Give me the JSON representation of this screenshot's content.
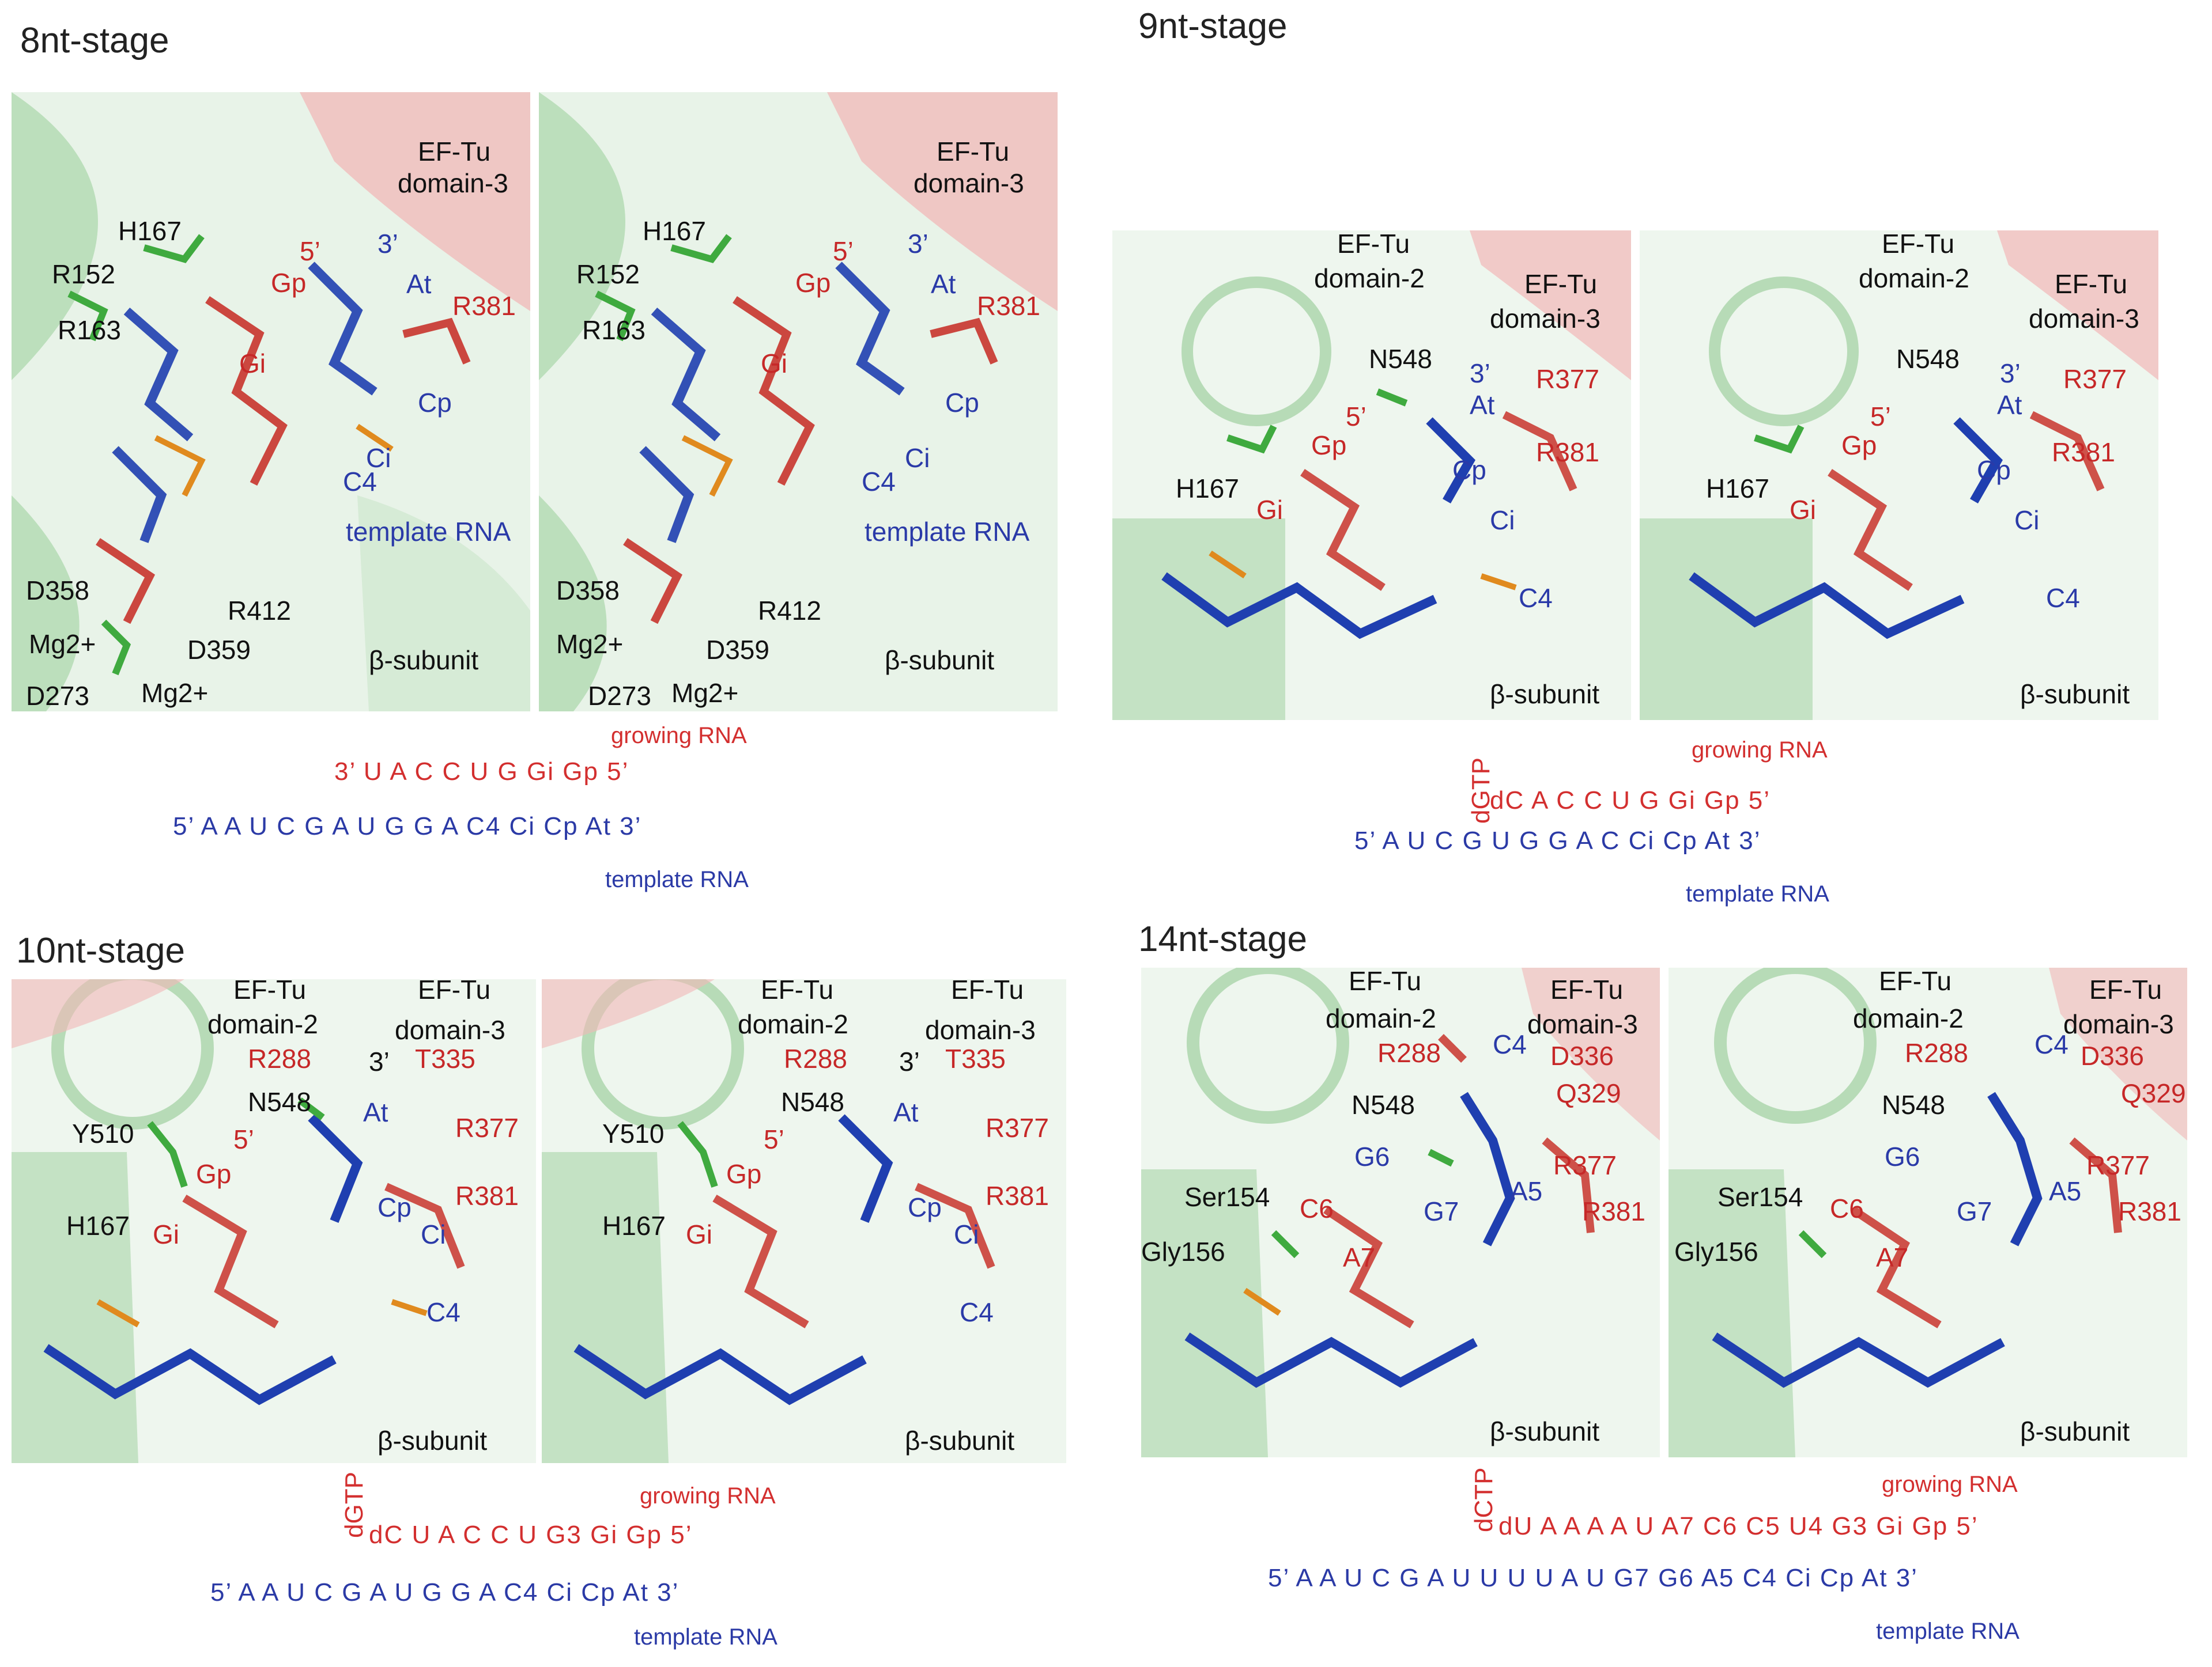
{
  "stages": {
    "s8": {
      "title": "8nt-stage",
      "labels": {
        "ef_tu": "EF-Tu",
        "domain3": "domain-3",
        "h167": "H167",
        "r152": "R152",
        "r163": "R163",
        "gp": "Gp",
        "five_prime": "5’",
        "three_prime": "3’",
        "at": "At",
        "r381": "R381",
        "gi": "Gi",
        "cp": "Cp",
        "ci": "Ci",
        "c4": "C4",
        "template_rna": "template RNA",
        "d358": "D358",
        "r412": "R412",
        "mg": "Mg2+",
        "d359": "D359",
        "d273": "D273",
        "beta": "β-subunit"
      },
      "growing_caption": "growing RNA",
      "growing_seq": "3’  U A C C U G  Gi  Gp  5’",
      "template_seq": "5’  A A U C G A U G G A C4  Ci Cp At  3’",
      "template_caption": "template RNA"
    },
    "s9": {
      "title": "9nt-stage",
      "labels": {
        "ef_tu": "EF-Tu",
        "domain2": "domain-2",
        "domain3": "domain-3",
        "n548": "N548",
        "three_prime": "3’",
        "at": "At",
        "r377": "R377",
        "five_prime": "5’",
        "gp": "Gp",
        "h167": "H167",
        "cp": "Cp",
        "r381": "R381",
        "gi": "Gi",
        "ci": "Ci",
        "c4": "C4",
        "beta": "β-subunit"
      },
      "vertical_label": "dGTP",
      "growing_caption": "growing RNA",
      "growing_seq": "dC A C C U G Gi Gp  5’",
      "template_seq": "5’  A U C   G U G G A C Ci Cp At  3’",
      "template_caption": "template RNA"
    },
    "s10": {
      "title": "10nt-stage",
      "labels": {
        "ef_tu": "EF-Tu",
        "domain2": "domain-2",
        "domain3": "domain-3",
        "r288": "R288",
        "three_prime": "3’",
        "t335": "T335",
        "n548": "N548",
        "y510": "Y510",
        "five_prime": "5’",
        "at": "At",
        "r377": "R377",
        "gp": "Gp",
        "cp": "Cp",
        "r381": "R381",
        "h167": "H167",
        "gi": "Gi",
        "ci": "Ci",
        "c4": "C4",
        "beta": "β-subunit"
      },
      "vertical_label": "dGTP",
      "growing_caption": "growing RNA",
      "growing_seq": "dC  U A C C U G3  Gi Gp  5’",
      "template_seq": "5’  A A U C   G A U G G A C4  Ci Cp At  3’",
      "template_caption": "template RNA"
    },
    "s14": {
      "title": "14nt-stage",
      "labels": {
        "ef_tu": "EF-Tu",
        "domain2": "domain-2",
        "domain3": "domain-3",
        "r288": "R288",
        "c4": "C4",
        "d336": "D336",
        "q329": "Q329",
        "n548": "N548",
        "g6": "G6",
        "r377": "R377",
        "ser154": "Ser154",
        "c6": "C6",
        "g7": "G7",
        "a5": "A5",
        "r381": "R381",
        "gly156": "Gly156",
        "a7": "A7",
        "beta": "β-subunit"
      },
      "vertical_label": "dCTP",
      "growing_caption": "growing RNA",
      "growing_seq": "dU  A A A A U A7 C6  C5 U4 G3 Gi Gp  5’",
      "template_seq": "5’  A A U C G   A U U U U A U G7 G6 A5 C4   Ci Cp At  3’",
      "template_caption": "template RNA"
    }
  },
  "colors": {
    "protein_green": "#5fae5f",
    "protein_red": "#d9454a",
    "rna_blue": "#1f3fb0",
    "rna_red": "#c8342c",
    "phosphate_orange": "#e08a1e"
  }
}
